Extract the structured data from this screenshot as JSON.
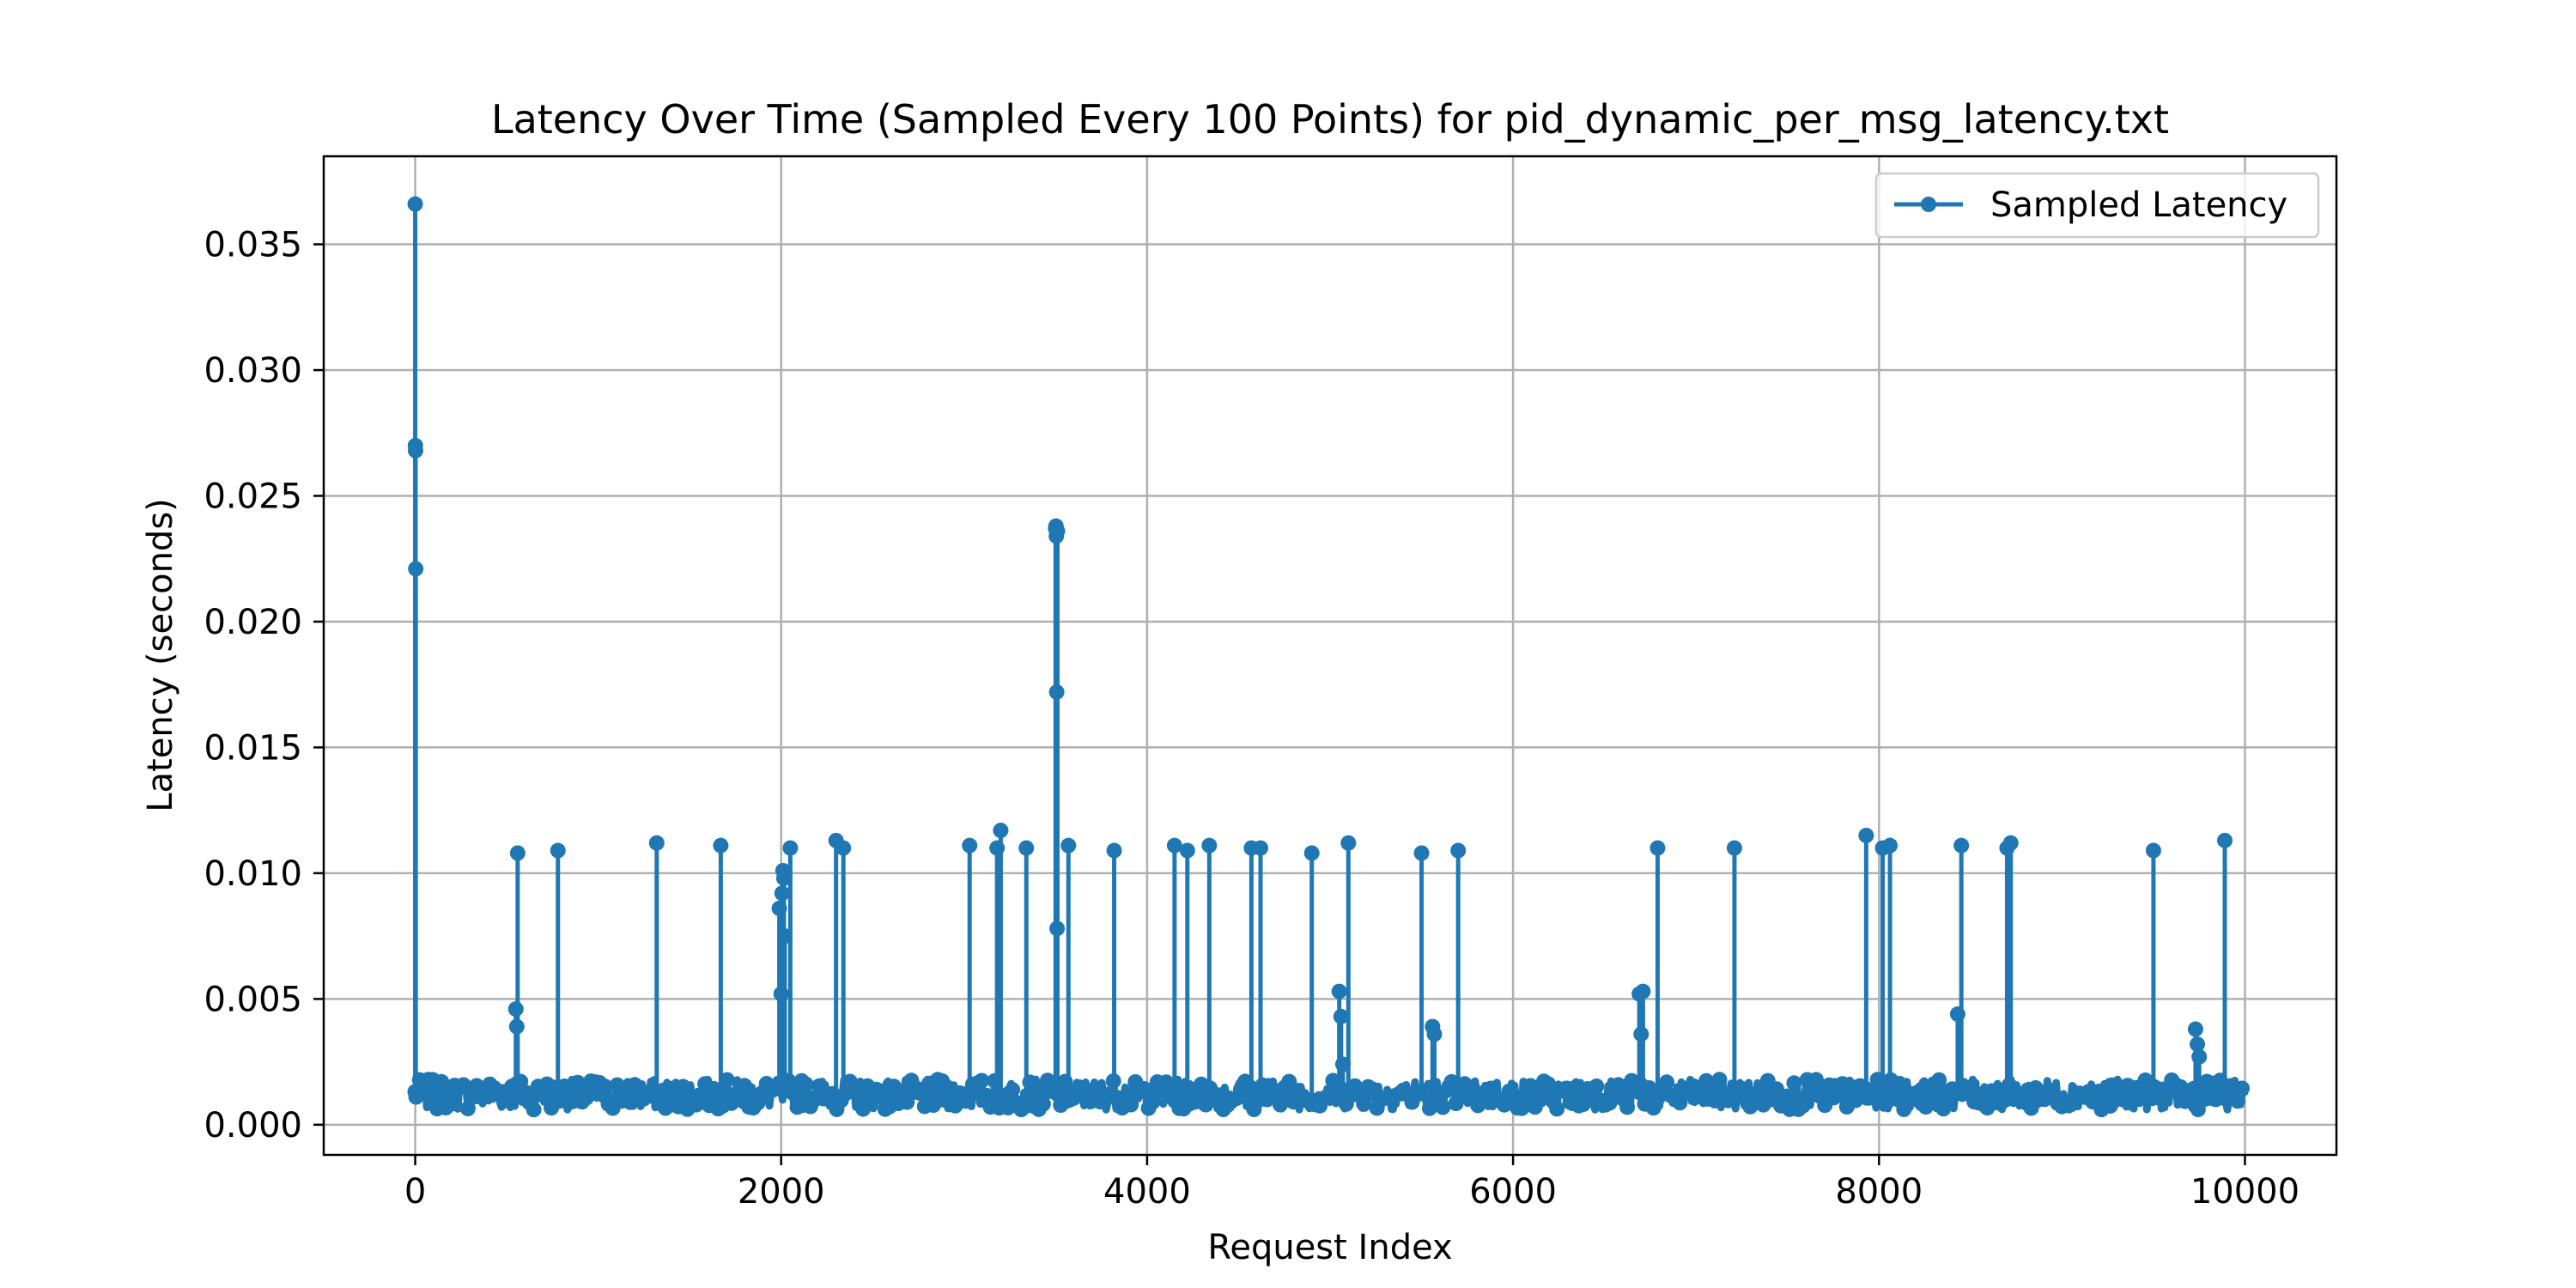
{
  "chart_data": {
    "type": "line",
    "title": "Latency Over Time (Sampled Every 100 Points) for pid_dynamic_per_msg_latency.txt",
    "xlabel": "Request Index",
    "ylabel": "Latency (seconds)",
    "xlim": [
      -500,
      10500
    ],
    "ylim": [
      -0.0012,
      0.0385
    ],
    "xticks": [
      0,
      2000,
      4000,
      6000,
      8000,
      10000
    ],
    "xtick_labels": [
      "0",
      "2000",
      "4000",
      "6000",
      "8000",
      "10000"
    ],
    "yticks": [
      0.0,
      0.005,
      0.01,
      0.015,
      0.02,
      0.025,
      0.03,
      0.035
    ],
    "ytick_labels": [
      "0.000",
      "0.005",
      "0.010",
      "0.015",
      "0.020",
      "0.025",
      "0.030",
      "0.035"
    ],
    "grid": true,
    "legend_position": "top-right",
    "color": "#1f77b4",
    "series": [
      {
        "name": "Sampled Latency",
        "x": [
          0,
          1,
          2,
          3,
          4,
          5,
          550,
          555,
          560,
          780,
          1320,
          1670,
          1990,
          2000,
          2005,
          2010,
          2015,
          2020,
          2050,
          2300,
          2340,
          3030,
          3180,
          3200,
          3340,
          3500,
          3502,
          3504,
          3506,
          3508,
          3510,
          3512,
          3570,
          3820,
          4150,
          4220,
          4340,
          4570,
          4620,
          4900,
          5050,
          5060,
          5070,
          5100,
          5500,
          5560,
          5570,
          5700,
          6690,
          6700,
          6710,
          6790,
          7210,
          7930,
          8020,
          8060,
          8430,
          8450,
          8700,
          8720,
          9500,
          9730,
          9740,
          9750,
          9890
        ],
        "y": [
          0.0366,
          0.027,
          0.0268,
          0.0221,
          0.0013,
          0.0011,
          0.0046,
          0.0039,
          0.0108,
          0.0109,
          0.0112,
          0.0111,
          0.0086,
          0.0052,
          0.0092,
          0.0101,
          0.0098,
          0.0075,
          0.011,
          0.0113,
          0.011,
          0.0111,
          0.011,
          0.0117,
          0.011,
          0.0237,
          0.0238,
          0.0234,
          0.0172,
          0.0078,
          0.0236,
          0.0012,
          0.0111,
          0.0109,
          0.0111,
          0.0109,
          0.0111,
          0.011,
          0.011,
          0.0108,
          0.0053,
          0.0043,
          0.0024,
          0.0112,
          0.0108,
          0.0039,
          0.0036,
          0.0109,
          0.0052,
          0.0036,
          0.0053,
          0.011,
          0.011,
          0.0115,
          0.011,
          0.0111,
          0.0044,
          0.0111,
          0.011,
          0.0112,
          0.0109,
          0.0038,
          0.0032,
          0.0027,
          0.0113
        ]
      }
    ],
    "baseline_range": [
      0.0006,
      0.0018
    ]
  }
}
